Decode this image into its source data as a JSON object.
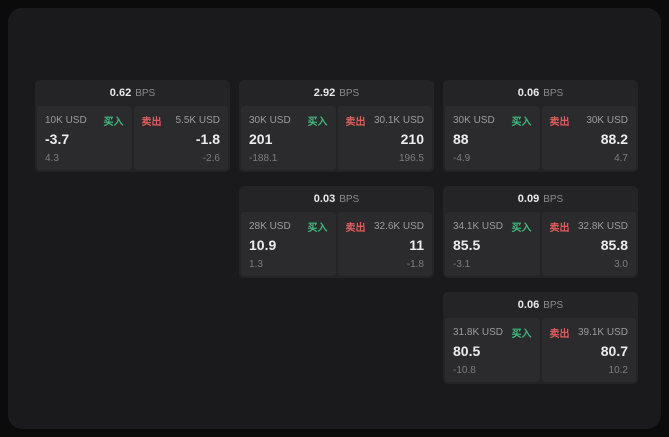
{
  "labels": {
    "bps_unit": "BPS",
    "buy": "买入",
    "sell": "卖出"
  },
  "colors": {
    "background": "#0b0b0c",
    "surface": "#1a1a1c",
    "card": "#242426",
    "panel": "#2b2b2e",
    "buy_accent": "#3fba7d",
    "sell_accent": "#e05c5c"
  },
  "cards": [
    {
      "bps": "0.62",
      "buy": {
        "amount": "10K USD",
        "price": "-3.7",
        "delta": "4.3"
      },
      "sell": {
        "amount": "5.5K USD",
        "price": "-1.8",
        "delta": "-2.6"
      }
    },
    {
      "bps": "2.92",
      "buy": {
        "amount": "30K USD",
        "price": "201",
        "delta": "-188.1"
      },
      "sell": {
        "amount": "30.1K USD",
        "price": "210",
        "delta": "196.5"
      }
    },
    {
      "bps": "0.06",
      "buy": {
        "amount": "30K USD",
        "price": "88",
        "delta": "-4.9"
      },
      "sell": {
        "amount": "30K USD",
        "price": "88.2",
        "delta": "4.7"
      }
    },
    {
      "bps": "0.03",
      "buy": {
        "amount": "28K USD",
        "price": "10.9",
        "delta": "1.3"
      },
      "sell": {
        "amount": "32.6K USD",
        "price": "11",
        "delta": "-1.8"
      }
    },
    {
      "bps": "0.09",
      "buy": {
        "amount": "34.1K USD",
        "price": "85.5",
        "delta": "-3.1"
      },
      "sell": {
        "amount": "32.8K USD",
        "price": "85.8",
        "delta": "3.0"
      }
    },
    {
      "bps": "0.06",
      "buy": {
        "amount": "31.8K USD",
        "price": "80.5",
        "delta": "-10.8"
      },
      "sell": {
        "amount": "39.1K USD",
        "price": "80.7",
        "delta": "10.2"
      }
    }
  ]
}
